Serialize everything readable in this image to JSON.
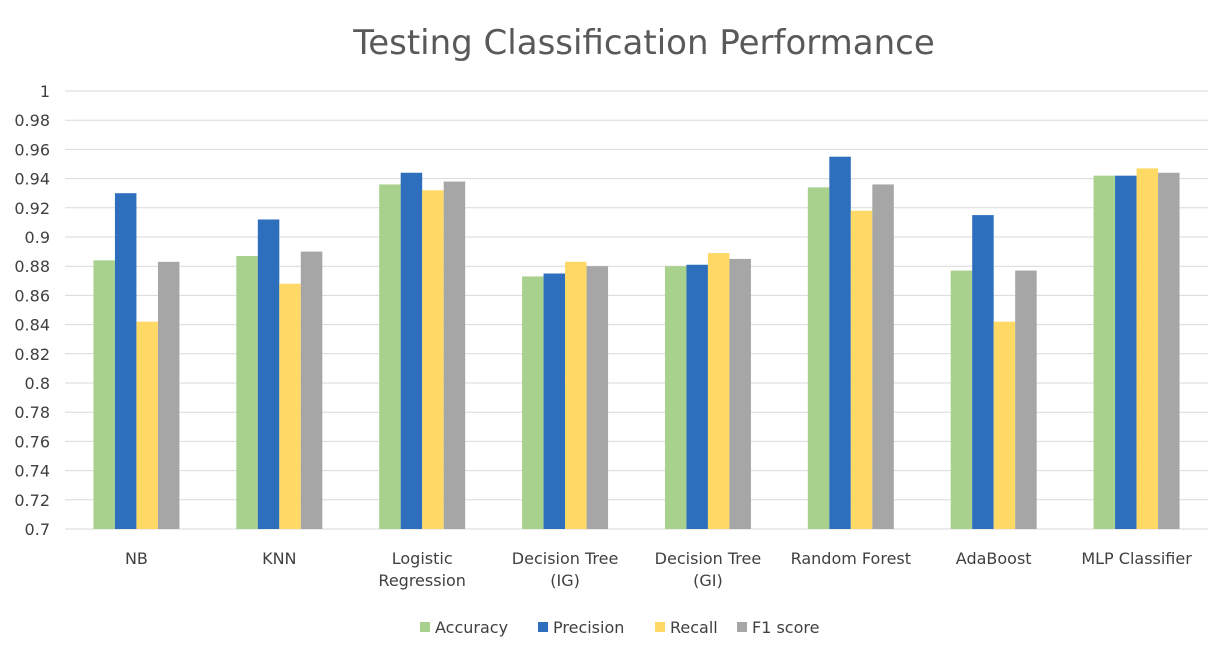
{
  "chart_data": {
    "type": "bar",
    "title": "Testing Classification Performance",
    "xlabel": "",
    "ylabel": "",
    "ylim": [
      0.7,
      1.0
    ],
    "yticks": [
      "0.7",
      "0.72",
      "0.74",
      "0.76",
      "0.78",
      "0.8",
      "0.82",
      "0.84",
      "0.86",
      "0.88",
      "0.9",
      "0.92",
      "0.94",
      "0.96",
      "0.98",
      "1"
    ],
    "grid": true,
    "legend_position": "bottom",
    "categories": [
      [
        "NB"
      ],
      [
        "KNN"
      ],
      [
        "Logistic",
        "Regression"
      ],
      [
        "Decision Tree",
        "(IG)"
      ],
      [
        "Decision Tree",
        "(GI)"
      ],
      [
        "Random Forest"
      ],
      [
        "AdaBoost"
      ],
      [
        "MLP Classifier"
      ]
    ],
    "series": [
      {
        "name": "Accuracy",
        "color": "#a9d18e",
        "values": [
          0.884,
          0.887,
          0.936,
          0.873,
          0.88,
          0.934,
          0.877,
          0.942
        ]
      },
      {
        "name": "Precision",
        "color": "#2e6fbd",
        "values": [
          0.93,
          0.912,
          0.944,
          0.875,
          0.881,
          0.955,
          0.915,
          0.942
        ]
      },
      {
        "name": "Recall",
        "color": "#ffd966",
        "values": [
          0.842,
          0.868,
          0.932,
          0.883,
          0.889,
          0.918,
          0.842,
          0.947
        ]
      },
      {
        "name": "F1 score",
        "color": "#a6a6a6",
        "values": [
          0.883,
          0.89,
          0.938,
          0.88,
          0.885,
          0.936,
          0.877,
          0.944
        ]
      }
    ]
  }
}
